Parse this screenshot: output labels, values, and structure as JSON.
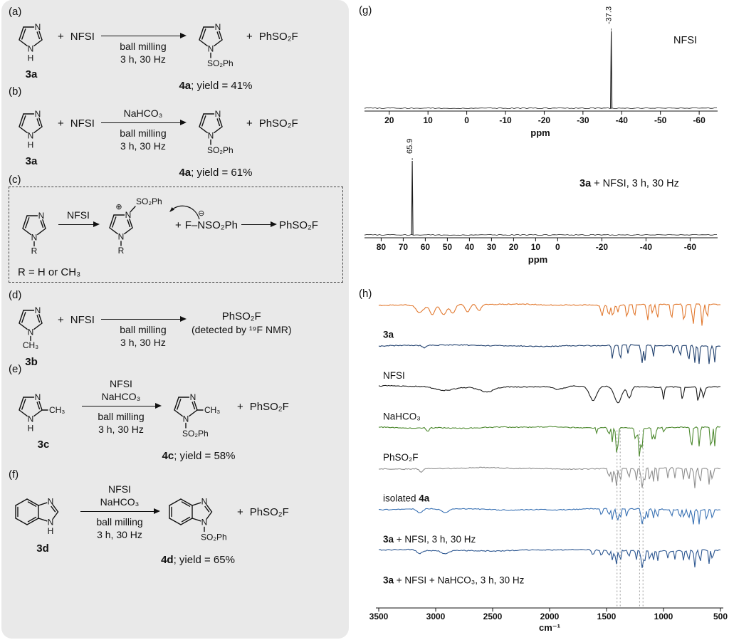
{
  "panels": {
    "g": "(g)",
    "h": "(h)"
  },
  "atoms": {
    "N": "N",
    "H": "H",
    "R": "R",
    "CH3": "CH₃",
    "SO2Ph": "SO₂Ph",
    "plus_charge": "⊕",
    "minus_charge": "⊖"
  },
  "schemes": {
    "a": {
      "label": "(a)",
      "reactant_id": "3a",
      "plus": "+",
      "reagent": "NFSI",
      "arrow_below": [
        "ball milling",
        "3 h, 30 Hz"
      ],
      "product_id": "4a",
      "product_yield": "; yield = 41%",
      "plus2": "+",
      "byproduct": "PhSO₂F"
    },
    "b": {
      "label": "(b)",
      "reactant_id": "3a",
      "plus": "+",
      "reagent": "NFSI",
      "arrow_above": [
        "NaHCO₃"
      ],
      "arrow_below": [
        "ball milling",
        "3 h, 30 Hz"
      ],
      "product_id": "4a",
      "product_yield": "; yield = 61%",
      "plus2": "+",
      "byproduct": "PhSO₂F"
    },
    "c": {
      "label": "(c)",
      "arrow_above": [
        "NFSI"
      ],
      "plus": "+",
      "anion_f": "F–",
      "anion_n": "N",
      "anion_charge": "⊖",
      "anion_so2ph": "SO₂Ph",
      "byproduct": "PhSO₂F",
      "r_note": "R = H or CH₃"
    },
    "d": {
      "label": "(d)",
      "reactant_id": "3b",
      "plus": "+",
      "reagent": "NFSI",
      "arrow_below": [
        "ball milling",
        "3 h, 30 Hz"
      ],
      "product_main": "PhSO₂F",
      "product_note": "(detected by ¹⁹F NMR)"
    },
    "e": {
      "label": "(e)",
      "reactant_id": "3c",
      "arrow_above": [
        "NFSI",
        "NaHCO₃"
      ],
      "arrow_below": [
        "ball milling",
        "3 h, 30 Hz"
      ],
      "product_id": "4c",
      "product_yield": "; yield = 58%",
      "plus2": "+",
      "byproduct": "PhSO₂F"
    },
    "f": {
      "label": "(f)",
      "reactant_id": "3d",
      "arrow_above": [
        "NFSI",
        "NaHCO₃"
      ],
      "arrow_below": [
        "ball milling",
        "3 h, 30 Hz"
      ],
      "product_id": "4d",
      "product_yield": "; yield = 65%",
      "plus2": "+",
      "byproduct": "PhSO₂F"
    }
  },
  "chart_data": [
    {
      "type": "line",
      "xlabel": "ppm",
      "x_ticks": [
        20,
        10,
        0,
        -10,
        -20,
        -30,
        -40,
        -50,
        -60
      ],
      "xlim": [
        24,
        -62
      ],
      "peaks": [
        {
          "ppm": -37.3,
          "label": "-37.3"
        }
      ],
      "annotation_parts": [
        {
          "t": "NFSI",
          "b": false
        }
      ]
    },
    {
      "type": "line",
      "xlabel": "ppm",
      "x_ticks": [
        80,
        70,
        60,
        50,
        40,
        30,
        20,
        10,
        0,
        -20,
        -40,
        -60
      ],
      "xlim": [
        84,
        -66
      ],
      "peaks": [
        {
          "ppm": 65.9,
          "label": "65.9"
        }
      ],
      "annotation_parts": [
        {
          "t": "3a",
          "b": true
        },
        {
          "t": " + NFSI, 3 h, 30 Hz",
          "b": false
        }
      ]
    },
    {
      "type": "line",
      "xlabel": "cm⁻¹",
      "x_ticks": [
        3500,
        3000,
        2500,
        2000,
        1500,
        1000,
        500
      ],
      "xlim": [
        3500,
        500
      ],
      "guide_wavenumbers": [
        1408,
        1380,
        1210,
        1180
      ],
      "series": [
        {
          "label_parts": [
            {
              "t": "3a",
              "b": true
            }
          ],
          "color": "#e2792f",
          "absorptions": [
            [
              3140,
              45,
              0.22
            ],
            [
              3030,
              30,
              0.28
            ],
            [
              2930,
              35,
              0.3
            ],
            [
              2850,
              30,
              0.26
            ],
            [
              2720,
              30,
              0.22
            ],
            [
              2620,
              25,
              0.2
            ],
            [
              1540,
              14,
              0.32
            ],
            [
              1480,
              12,
              0.3
            ],
            [
              1445,
              12,
              0.35
            ],
            [
              1400,
              10,
              0.22
            ],
            [
              1320,
              10,
              0.42
            ],
            [
              1255,
              10,
              0.4
            ],
            [
              1140,
              10,
              0.5
            ],
            [
              1095,
              8,
              0.35
            ],
            [
              1055,
              8,
              0.55
            ],
            [
              930,
              10,
              0.5
            ],
            [
              820,
              12,
              0.55
            ],
            [
              740,
              12,
              0.62
            ],
            [
              660,
              10,
              0.68
            ],
            [
              618,
              8,
              0.55
            ]
          ]
        },
        {
          "label_parts": [
            {
              "t": "NFSI",
              "b": false
            }
          ],
          "color": "#20406e",
          "absorptions": [
            [
              3100,
              20,
              0.08
            ],
            [
              1448,
              10,
              0.42
            ],
            [
              1380,
              10,
              0.5
            ],
            [
              1310,
              8,
              0.3
            ],
            [
              1190,
              10,
              0.58
            ],
            [
              1165,
              8,
              0.5
            ],
            [
              1090,
              8,
              0.35
            ],
            [
              910,
              8,
              0.25
            ],
            [
              855,
              8,
              0.42
            ],
            [
              780,
              10,
              0.5
            ],
            [
              727,
              8,
              0.55
            ],
            [
              688,
              8,
              0.55
            ],
            [
              597,
              8,
              0.6
            ],
            [
              552,
              8,
              0.5
            ]
          ]
        },
        {
          "label_parts": [
            {
              "t": "NaHCO₃",
              "b": false
            }
          ],
          "color": "#1c1c1c",
          "absorptions": [
            [
              2920,
              120,
              0.12
            ],
            [
              2550,
              90,
              0.14
            ],
            [
              1920,
              70,
              0.1
            ],
            [
              1618,
              45,
              0.42
            ],
            [
              1400,
              45,
              0.5
            ],
            [
              1300,
              25,
              0.35
            ],
            [
              1000,
              10,
              0.38
            ],
            [
              833,
              10,
              0.45
            ],
            [
              695,
              10,
              0.5
            ],
            [
              650,
              15,
              0.3
            ]
          ]
        },
        {
          "label_parts": [
            {
              "t": "PhSO₂F",
              "b": false
            }
          ],
          "color": "#4e8a30",
          "absorptions": [
            [
              3070,
              15,
              0.12
            ],
            [
              1585,
              8,
              0.18
            ],
            [
              1480,
              8,
              0.28
            ],
            [
              1450,
              8,
              0.42
            ],
            [
              1408,
              12,
              0.85
            ],
            [
              1245,
              10,
              0.4
            ],
            [
              1210,
              12,
              0.88
            ],
            [
              1188,
              8,
              0.55
            ],
            [
              1095,
              8,
              0.5
            ],
            [
              1072,
              8,
              0.4
            ],
            [
              995,
              6,
              0.28
            ],
            [
              755,
              10,
              0.68
            ],
            [
              685,
              8,
              0.62
            ],
            [
              582,
              10,
              0.72
            ],
            [
              550,
              8,
              0.58
            ]
          ]
        },
        {
          "label_parts": [
            {
              "t": "isolated ",
              "b": false
            },
            {
              "t": "4a",
              "b": true
            }
          ],
          "color": "#8f8f8f",
          "absorptions": [
            [
              3130,
              20,
              0.12
            ],
            [
              1480,
              10,
              0.3
            ],
            [
              1450,
              10,
              0.4
            ],
            [
              1415,
              10,
              0.55
            ],
            [
              1380,
              8,
              0.5
            ],
            [
              1305,
              8,
              0.35
            ],
            [
              1240,
              8,
              0.4
            ],
            [
              1190,
              10,
              0.62
            ],
            [
              1168,
              8,
              0.58
            ],
            [
              1120,
              8,
              0.48
            ],
            [
              1090,
              8,
              0.45
            ],
            [
              1050,
              8,
              0.4
            ],
            [
              960,
              8,
              0.35
            ],
            [
              900,
              8,
              0.3
            ],
            [
              825,
              8,
              0.35
            ],
            [
              780,
              8,
              0.45
            ],
            [
              725,
              10,
              0.58
            ],
            [
              680,
              8,
              0.55
            ],
            [
              600,
              8,
              0.5
            ],
            [
              570,
              8,
              0.45
            ]
          ]
        },
        {
          "label_parts": [
            {
              "t": "3a",
              "b": true
            },
            {
              "t": " + NFSI, 3 h, 30 Hz",
              "b": false
            }
          ],
          "color": "#3a72b4",
          "absorptions": [
            [
              3140,
              35,
              0.12
            ],
            [
              2920,
              40,
              0.1
            ],
            [
              1545,
              10,
              0.2
            ],
            [
              1480,
              8,
              0.25
            ],
            [
              1448,
              10,
              0.32
            ],
            [
              1405,
              10,
              0.4
            ],
            [
              1380,
              8,
              0.35
            ],
            [
              1322,
              8,
              0.25
            ],
            [
              1190,
              10,
              0.5
            ],
            [
              1168,
              8,
              0.45
            ],
            [
              1140,
              8,
              0.3
            ],
            [
              1090,
              8,
              0.3
            ],
            [
              1055,
              8,
              0.3
            ],
            [
              930,
              8,
              0.25
            ],
            [
              855,
              8,
              0.3
            ],
            [
              820,
              8,
              0.3
            ],
            [
              780,
              8,
              0.35
            ],
            [
              740,
              10,
              0.45
            ],
            [
              688,
              8,
              0.45
            ],
            [
              620,
              8,
              0.4
            ],
            [
              570,
              8,
              0.35
            ]
          ]
        },
        {
          "label_parts": [
            {
              "t": "3a",
              "b": true
            },
            {
              "t": " + NFSI + NaHCO₃, 3 h, 30 Hz",
              "b": false
            }
          ],
          "color": "#2d5791",
          "absorptions": [
            [
              3140,
              35,
              0.1
            ],
            [
              2920,
              40,
              0.1
            ],
            [
              1620,
              15,
              0.15
            ],
            [
              1545,
              10,
              0.18
            ],
            [
              1480,
              8,
              0.22
            ],
            [
              1448,
              10,
              0.3
            ],
            [
              1415,
              10,
              0.42
            ],
            [
              1380,
              8,
              0.38
            ],
            [
              1305,
              8,
              0.25
            ],
            [
              1240,
              8,
              0.3
            ],
            [
              1190,
              10,
              0.55
            ],
            [
              1168,
              8,
              0.5
            ],
            [
              1120,
              8,
              0.35
            ],
            [
              1090,
              8,
              0.3
            ],
            [
              1050,
              8,
              0.3
            ],
            [
              960,
              8,
              0.25
            ],
            [
              900,
              8,
              0.25
            ],
            [
              825,
              8,
              0.3
            ],
            [
              780,
              8,
              0.4
            ],
            [
              725,
              10,
              0.5
            ],
            [
              680,
              8,
              0.45
            ],
            [
              600,
              8,
              0.4
            ],
            [
              570,
              8,
              0.35
            ]
          ]
        }
      ]
    }
  ]
}
